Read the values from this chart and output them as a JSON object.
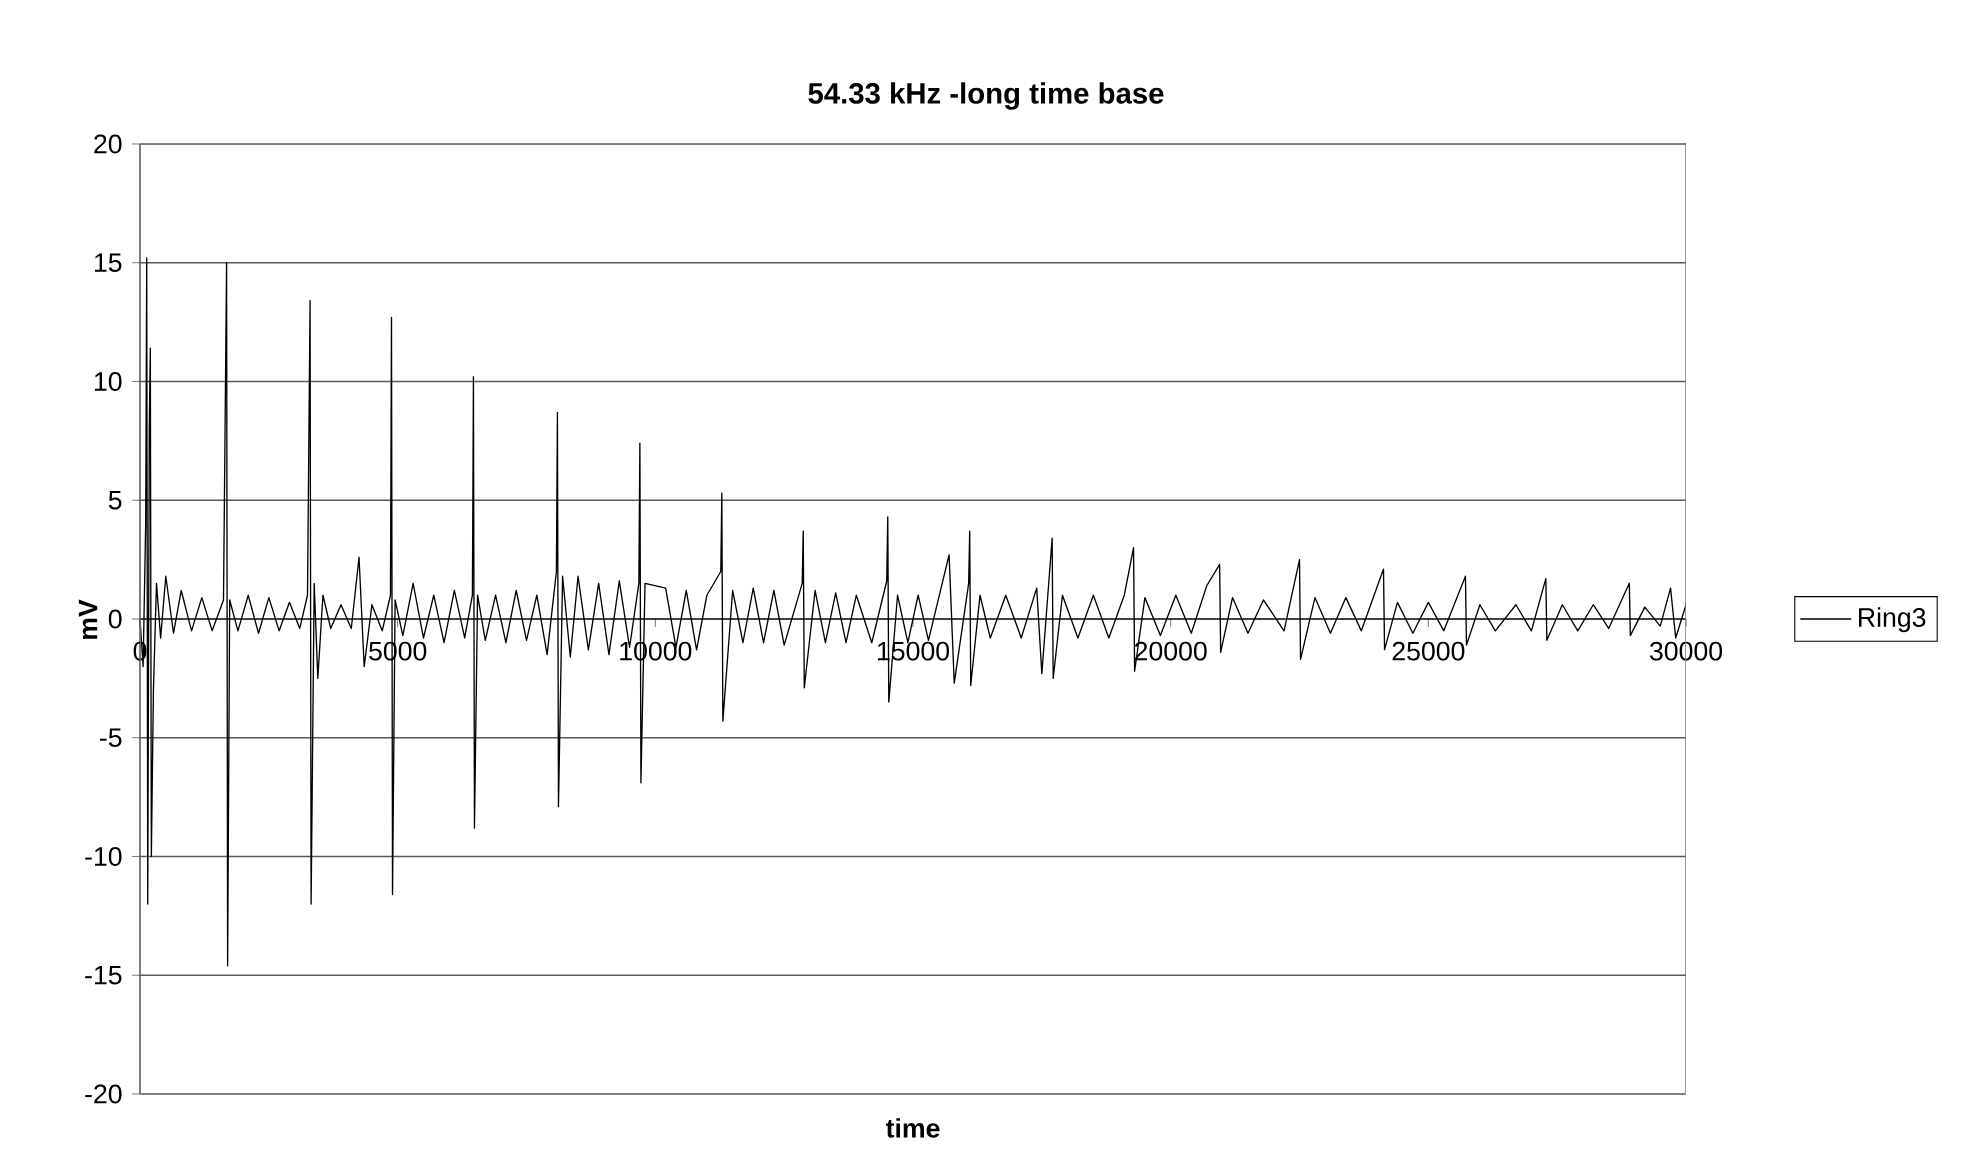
{
  "chart_data": {
    "type": "line",
    "title": "54.33 kHz -long time base",
    "xlabel": "time",
    "ylabel": "mV",
    "xlim": [
      0,
      30000
    ],
    "xticks": [
      0,
      5000,
      10000,
      15000,
      20000,
      25000,
      30000
    ],
    "ylim": [
      -20,
      20
    ],
    "yticks": [
      -20,
      -15,
      -10,
      -5,
      0,
      5,
      10,
      15,
      20
    ],
    "grid": "y",
    "legend": "right",
    "marker": "none",
    "line_style": "solid",
    "series": [
      {
        "name": "Ring3",
        "color": "#000000",
        "x": [
          0,
          60,
          110,
          130,
          150,
          180,
          200,
          220,
          260,
          320,
          400,
          500,
          650,
          800,
          1000,
          1200,
          1400,
          1620,
          1680,
          1700,
          1740,
          1900,
          2100,
          2300,
          2500,
          2700,
          2900,
          3100,
          3250,
          3300,
          3320,
          3380,
          3450,
          3550,
          3700,
          3900,
          4100,
          4250,
          4350,
          4500,
          4700,
          4860,
          4880,
          4900,
          4950,
          5100,
          5300,
          5500,
          5700,
          5900,
          6100,
          6300,
          6450,
          6470,
          6490,
          6550,
          6700,
          6900,
          7100,
          7300,
          7500,
          7700,
          7900,
          8080,
          8100,
          8120,
          8200,
          8350,
          8500,
          8700,
          8900,
          9100,
          9300,
          9500,
          9680,
          9700,
          9720,
          9800,
          10200,
          10400,
          10600,
          10800,
          11000,
          11270,
          11290,
          11310,
          11500,
          11700,
          11900,
          12100,
          12300,
          12500,
          12850,
          12870,
          12890,
          13100,
          13300,
          13500,
          13700,
          13900,
          14200,
          14490,
          14510,
          14530,
          14700,
          14900,
          15100,
          15300,
          15700,
          15800,
          16080,
          16100,
          16120,
          16300,
          16500,
          16800,
          17100,
          17400,
          17500,
          17700,
          17720,
          17900,
          18200,
          18500,
          18800,
          19100,
          19280,
          19300,
          19500,
          19800,
          20100,
          20400,
          20700,
          20950,
          20970,
          21200,
          21500,
          21800,
          22200,
          22500,
          22520,
          22800,
          23100,
          23400,
          23700,
          24130,
          24150,
          24400,
          24700,
          25000,
          25300,
          25720,
          25740,
          26000,
          26300,
          26700,
          27000,
          27280,
          27300,
          27600,
          27900,
          28200,
          28500,
          28900,
          28920,
          29200,
          29500,
          29700,
          29800,
          30000
        ],
        "values": [
          0,
          -2,
          4,
          15.2,
          -12.0,
          8,
          11.4,
          -10,
          -3,
          1.5,
          -0.8,
          1.8,
          -0.6,
          1.2,
          -0.5,
          0.9,
          -0.5,
          0.8,
          15.0,
          -14.6,
          0.8,
          -0.5,
          1.0,
          -0.6,
          0.9,
          -0.5,
          0.7,
          -0.4,
          1.0,
          13.4,
          -12.0,
          1.5,
          -2.5,
          1.0,
          -0.4,
          0.6,
          -0.4,
          2.6,
          -2.0,
          0.6,
          -0.5,
          1.0,
          12.7,
          -11.6,
          0.8,
          -0.7,
          1.5,
          -0.8,
          1.0,
          -1.0,
          1.2,
          -0.8,
          1.0,
          10.2,
          -8.8,
          1.0,
          -0.9,
          1.0,
          -1.0,
          1.2,
          -0.9,
          1.0,
          -1.5,
          2.0,
          8.7,
          -7.9,
          1.8,
          -1.6,
          1.8,
          -1.3,
          1.5,
          -1.5,
          1.6,
          -1.2,
          1.5,
          7.4,
          -6.9,
          1.5,
          1.3,
          -1.2,
          1.2,
          -1.3,
          1.0,
          2.0,
          5.3,
          -4.3,
          1.2,
          -1.0,
          1.3,
          -1.0,
          1.2,
          -1.1,
          1.5,
          3.7,
          -2.9,
          1.2,
          -1.0,
          1.1,
          -1.0,
          1.0,
          -1.0,
          1.6,
          4.3,
          -3.5,
          1.0,
          -1.0,
          1.0,
          -0.9,
          2.7,
          -2.7,
          1.5,
          3.7,
          -2.8,
          1.0,
          -0.8,
          1.0,
          -0.8,
          1.3,
          -2.3,
          3.4,
          -2.5,
          1.0,
          -0.8,
          1.0,
          -0.8,
          1.0,
          3.0,
          -2.2,
          0.9,
          -0.7,
          1.0,
          -0.6,
          1.4,
          2.3,
          -1.4,
          0.9,
          -0.6,
          0.8,
          -0.5,
          2.5,
          -1.7,
          0.9,
          -0.6,
          0.9,
          -0.5,
          2.1,
          -1.3,
          0.7,
          -0.6,
          0.7,
          -0.5,
          1.8,
          -1.1,
          0.6,
          -0.5,
          0.6,
          -0.5,
          1.7,
          -0.9,
          0.6,
          -0.5,
          0.6,
          -0.4,
          1.5,
          -0.7,
          0.5,
          -0.3,
          1.3,
          -0.8,
          0.6
        ]
      }
    ]
  }
}
